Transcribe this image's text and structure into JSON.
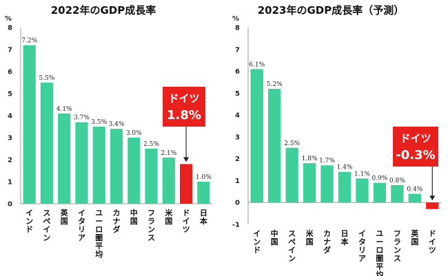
{
  "colors": {
    "bar": "#3ecf9a",
    "highlight": "#e8211e",
    "axis": "#999999",
    "callout_bg": "#e8211e",
    "callout_text": "#ffffff"
  },
  "chart_data": [
    {
      "type": "bar",
      "title": "2022年のGDP成長率",
      "ylabel": "%",
      "ylim": [
        0,
        8
      ],
      "yticks": [
        0,
        1,
        2,
        3,
        4,
        5,
        6,
        7,
        8
      ],
      "categories": [
        "インド",
        "スペイン",
        "英国",
        "イタリア",
        "ユーロ圏平均",
        "カナダ",
        "中国",
        "フランス",
        "米国",
        "ドイツ",
        "日本"
      ],
      "values": [
        7.2,
        5.5,
        4.1,
        3.7,
        3.5,
        3.4,
        3.0,
        2.5,
        2.1,
        1.8,
        1.0
      ],
      "value_labels": [
        "7.2%",
        "5.5%",
        "4.1%",
        "3.7%",
        "3.5%",
        "3.4%",
        "3.0%",
        "2.5%",
        "2.1%",
        null,
        "1.0%"
      ],
      "highlight": "ドイツ",
      "callout": {
        "line1": "ドイツ",
        "line2": "1.8%"
      },
      "grid": false
    },
    {
      "type": "bar",
      "title": "2023年のGDP成長率（予測）",
      "ylabel": "%",
      "ylim": [
        -1,
        8
      ],
      "yticks": [
        -1,
        0,
        1,
        2,
        3,
        4,
        5,
        6,
        7,
        8
      ],
      "categories": [
        "インド",
        "中国",
        "スペイン",
        "米国",
        "カナダ",
        "日本",
        "イタリア",
        "ユーロ圏平均",
        "フランス",
        "英国",
        "ドイツ"
      ],
      "values": [
        6.1,
        5.2,
        2.5,
        1.8,
        1.7,
        1.4,
        1.1,
        0.9,
        0.8,
        0.4,
        -0.3
      ],
      "value_labels": [
        "6.1%",
        "5.2%",
        "2.5%",
        "1.8%",
        "1.7%",
        "1.4%",
        "1.1%",
        "0.9%",
        "0.8%",
        "0.4%",
        null
      ],
      "highlight": "ドイツ",
      "callout": {
        "line1": "ドイツ",
        "line2": "-0.3%"
      },
      "grid": false
    }
  ]
}
